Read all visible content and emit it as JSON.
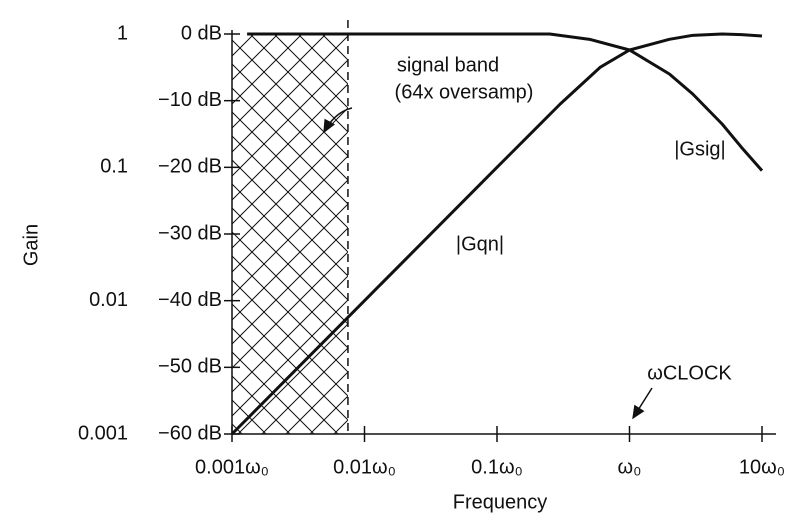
{
  "chart_data": {
    "type": "line",
    "x_label": "Frequency",
    "y_label": "Gain",
    "xlog": true,
    "xlim": [
      0.001,
      10
    ],
    "xticks": [
      {
        "value": 0.001,
        "label": "0.001ω₀"
      },
      {
        "value": 0.01,
        "label": "0.01ω₀"
      },
      {
        "value": 0.1,
        "label": "0.1ω₀"
      },
      {
        "value": 1,
        "label": "ω₀"
      },
      {
        "value": 10,
        "label": "10ω₀"
      }
    ],
    "ylim": [
      -60,
      0
    ],
    "yticks": [
      {
        "value": 0,
        "label": "0 dB"
      },
      {
        "value": -10,
        "label": "−10 dB"
      },
      {
        "value": -20,
        "label": "−20 dB"
      },
      {
        "value": -30,
        "label": "−30 dB"
      },
      {
        "value": -40,
        "label": "−40 dB"
      },
      {
        "value": -50,
        "label": "−50 dB"
      },
      {
        "value": -60,
        "label": "−60 dB"
      }
    ],
    "y2log": true,
    "y2lim": [
      0.001,
      1
    ],
    "y2ticks": [
      1,
      0.1,
      0.01,
      0.001
    ],
    "signal_band": [
      0.001,
      0.0075
    ],
    "band_labels": [
      "signal band",
      "(64x oversamp)"
    ],
    "clock_label": "ωCLOCK",
    "clock_x": 1,
    "series": [
      {
        "name": "|Gsig|",
        "color": "#111111",
        "x": [
          0.0013,
          0.25,
          0.5,
          1,
          2,
          3,
          5,
          7,
          10
        ],
        "values": [
          0,
          0,
          -0.8,
          -2.4,
          -6,
          -9,
          -13.5,
          -17,
          -20.5
        ]
      },
      {
        "name": "|Gqn|",
        "color": "#111111",
        "x": [
          0.001,
          0.01,
          0.1,
          0.3,
          0.6,
          1,
          2,
          3,
          5,
          7,
          10
        ],
        "values": [
          -60,
          -40,
          -20,
          -10.5,
          -5,
          -2.4,
          -0.8,
          -0.2,
          0,
          -0.1,
          -0.3
        ]
      }
    ]
  }
}
